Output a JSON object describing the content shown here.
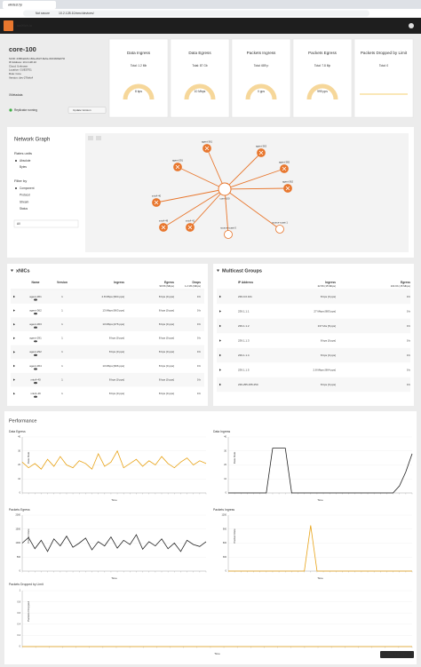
{
  "browser": {
    "tab": "wikitest.fyi",
    "security": "Not secure",
    "url": "10.2.128.10/xmc/devices/"
  },
  "app": {
    "brand": "swXtch.io"
  },
  "device": {
    "name": "core-100",
    "details": [
      "SUID: 23f0ba023-166a-46d7-8e6e-0164b6fa07fd",
      "IP Address: 10.2.128.10",
      "Cloud: Unknown",
      "Location: GUEST01",
      "Role: Core",
      "Version: dev-276efc4"
    ],
    "metadata": "XMetadata",
    "status": "Replicator running",
    "button": "Update Version"
  },
  "cards": [
    {
      "title": "Data Ingress",
      "total": "Total: 1.2 Mb",
      "value": "8 bps"
    },
    {
      "title": "Data Egress",
      "total": "Total: 87 Gb",
      "value": "10 Mbps"
    },
    {
      "title": "Packets Ingress",
      "total": "Total: 689 p",
      "value": "0 pps"
    },
    {
      "title": "Packets Egress",
      "total": "Total: 7.8 Mp",
      "value": "999 pps"
    },
    {
      "title": "Packets Dropped by Limit",
      "total": "Total: 0"
    }
  ],
  "network_graph": {
    "title": "Network Graph",
    "rates_label": "Rates units",
    "rates": [
      "Absolute",
      "Bytes"
    ],
    "filter_label": "Filter by",
    "filters": [
      "Component",
      "Protocol",
      "Stream",
      "Status"
    ],
    "select": "All",
    "center": "core-100",
    "nodes": [
      "agent-361",
      "agent-363",
      "agent-291",
      "agent-365",
      "agent-362",
      "xnic4-40",
      "xnic4-49",
      "xnic4-41",
      "source-xcast-0",
      "source-xcast-1"
    ]
  },
  "xnics": {
    "title": "xNICs",
    "headers": [
      "Name",
      "Version",
      "Ingress",
      "Egress",
      "Drops"
    ],
    "subheaders": [
      "99.56 (Mbps)",
      "1.2 Mb (Mbps)"
    ],
    "rows": [
      [
        "agent-361",
        "1",
        "2.8 Mbps [964 pps]",
        "8 bps [0 pps]",
        "0 b"
      ],
      [
        "agent-362",
        "1",
        "13 Mbps [963 pps]",
        "8 bps [0 pps]",
        "0 b"
      ],
      [
        "agent-363",
        "1",
        "13 Mbps [276 pps]",
        "8 bps [0 pps]",
        "0 b"
      ],
      [
        "agent-291",
        "1",
        "8 bps [0 pps]",
        "8 bps [0 pps]",
        "0 b"
      ],
      [
        "agent-292",
        "1",
        "8 bps [0 pps]",
        "8 bps [0 pps]",
        "0 b"
      ],
      [
        "agent-364",
        "1",
        "13 Mbps [966 pps]",
        "8 bps [0 pps]",
        "0 b"
      ],
      [
        "xnic4-40",
        "1",
        "8 bps [0 pps]",
        "8 bps [0 pps]",
        "0 b"
      ],
      [
        "xnic4-49",
        "1",
        "8 bps [0 pps]",
        "8 bps [0 pps]",
        "0 b"
      ]
    ]
  },
  "multicast": {
    "title": "Multicast Groups",
    "headers": [
      "IP Address",
      "Ingress",
      "Egress"
    ],
    "subheaders": [
      "22.56 (15 Mbps)",
      "104 Kb (15 Mbps)"
    ],
    "rows": [
      [
        "239.0.0.101",
        "8 bps [0 pps]",
        "0 b"
      ],
      [
        "239.1.1.1",
        "27 Mbps [983 pps]",
        "0 b"
      ],
      [
        "239.1.1.2",
        "137 kbs [8 pps]",
        "0 b"
      ],
      [
        "239.1.1.3",
        "8 bps [0 pps]",
        "0 b"
      ],
      [
        "239.1.1.4",
        "8 bps [0 pps]",
        "0 b"
      ],
      [
        "239.1.1.5",
        "2.8 Mbps [964 pps]",
        "0 b"
      ],
      [
        "239.255.255.250",
        "8 bps [0 pps]",
        "0 b"
      ]
    ]
  },
  "performance": {
    "title": "Performance",
    "export": "Export as CSV",
    "charts": [
      {
        "type": "line",
        "title": "Data Egress",
        "ylabel": "Data Rate",
        "xlabel": "Time",
        "color": "#e8a317",
        "ylim": [
          0,
          40
        ],
        "yticks": [
          0,
          10,
          20,
          30,
          40
        ],
        "values": [
          22,
          18,
          21,
          17,
          24,
          19,
          26,
          20,
          18,
          23,
          21,
          17,
          28,
          19,
          22,
          30,
          18,
          21,
          24,
          19,
          23,
          20,
          26,
          21,
          18,
          22,
          25,
          20,
          23,
          21
        ]
      },
      {
        "type": "line",
        "title": "Data Ingress",
        "ylabel": "Data Rate",
        "xlabel": "Time",
        "color": "#222222",
        "ylim": [
          0,
          40
        ],
        "yticks": [
          0,
          10,
          20,
          30,
          40
        ],
        "values": [
          0,
          0,
          0,
          0,
          0,
          0,
          0,
          32,
          32,
          32,
          0,
          0,
          0,
          0,
          0,
          0,
          0,
          0,
          0,
          0,
          0,
          0,
          0,
          0,
          0,
          0,
          0,
          5,
          15,
          28
        ]
      },
      {
        "type": "line",
        "title": "Packets Egress",
        "ylabel": "Packet Rate",
        "xlabel": "Time",
        "color": "#222222",
        "ylim": [
          0,
          2000
        ],
        "yticks": [
          0,
          500,
          1000,
          1500,
          2000
        ],
        "values": [
          1000,
          1200,
          800,
          1100,
          700,
          1150,
          900,
          1250,
          850,
          1000,
          1180,
          760,
          1050,
          900,
          1220,
          820,
          1100,
          950,
          1300,
          780,
          1050,
          900,
          1150,
          800,
          1000,
          700,
          1100,
          950,
          880,
          1050
        ]
      },
      {
        "type": "line",
        "title": "Packets Ingress",
        "ylabel": "Packet Rate",
        "xlabel": "Time",
        "color": "#e8a317",
        "ylim": [
          0,
          1200
        ],
        "yticks": [
          0,
          300,
          600,
          900,
          1200
        ],
        "values": [
          0,
          0,
          0,
          0,
          0,
          0,
          0,
          0,
          0,
          0,
          0,
          0,
          0,
          980,
          0,
          0,
          0,
          0,
          0,
          0,
          0,
          0,
          0,
          0,
          0,
          0,
          0,
          0,
          0,
          0
        ]
      },
      {
        "type": "line",
        "title": "Packets Dropped by Limit",
        "ylabel": "Packets Dropped",
        "xlabel": "Time",
        "color": "#e8a317",
        "ylim": [
          0,
          1
        ],
        "yticks": [
          0,
          0.2,
          0.4,
          0.6,
          0.8,
          1
        ],
        "values": [
          0,
          0,
          0,
          0,
          0,
          0,
          0,
          0,
          0,
          0,
          0,
          0,
          0,
          0,
          0,
          0,
          0,
          0,
          0,
          0,
          0,
          0,
          0,
          0,
          0,
          0,
          0,
          0,
          0,
          0
        ]
      }
    ]
  }
}
